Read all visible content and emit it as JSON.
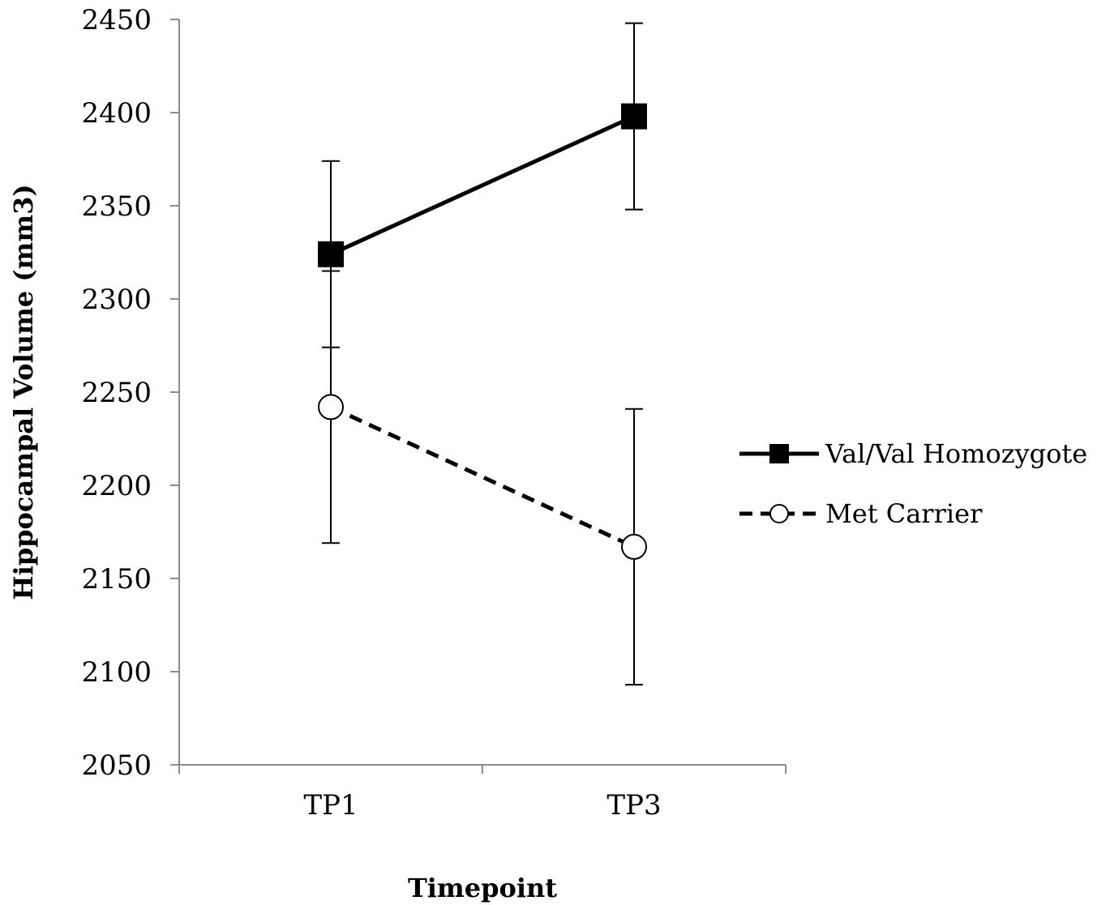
{
  "chart_data": {
    "type": "line",
    "title": "",
    "xlabel": "Timepoint",
    "ylabel": "Hippocampal Volume (mm3)",
    "categories": [
      "TP1",
      "TP3"
    ],
    "ylim": [
      2050,
      2450
    ],
    "yticks": [
      2050,
      2100,
      2150,
      2200,
      2250,
      2300,
      2350,
      2400,
      2450
    ],
    "grid": false,
    "legend_position": "right",
    "series": [
      {
        "name": "Val/Val Homozygote",
        "values": [
          2324,
          2398
        ],
        "error": [
          50,
          50
        ],
        "line_style": "solid",
        "marker": "filled-square",
        "color": "#000000"
      },
      {
        "name": "Met Carrier",
        "values": [
          2242,
          2167
        ],
        "error": [
          73,
          74
        ],
        "line_style": "dashed",
        "marker": "open-circle",
        "color": "#000000"
      }
    ]
  }
}
